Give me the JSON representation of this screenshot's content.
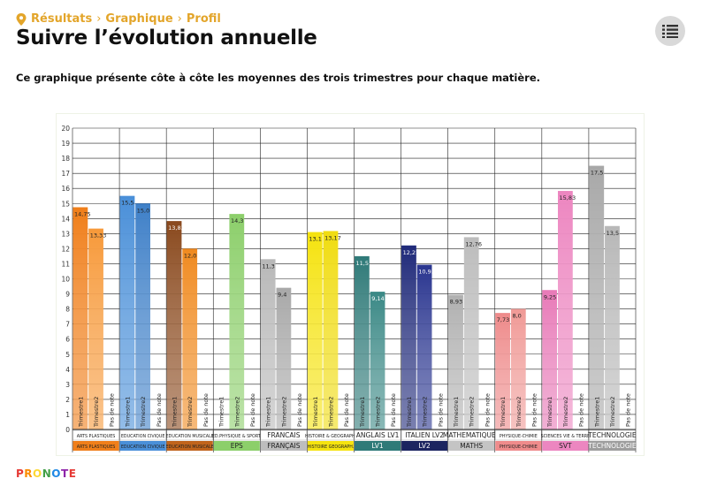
{
  "breadcrumb": {
    "items": [
      "Résultats",
      "Graphique",
      "Profil"
    ],
    "separator": "›"
  },
  "page_title": "Suivre l’évolution annuelle",
  "description": "Ce graphique présente côte à côte les moyennes des trois trimestres pour chaque matière.",
  "menu_icon": "list-menu-icon",
  "brand": {
    "text": "PRONOTE",
    "colors": [
      "#e53935",
      "#fb8c00",
      "#fdd835",
      "#43a047",
      "#1e88e5",
      "#8e24aa",
      "#e53935"
    ]
  },
  "chart_data": {
    "type": "bar",
    "title": "",
    "xlabel": "",
    "ylabel": "",
    "ylim": [
      0,
      20
    ],
    "yticks": [
      0,
      1,
      2,
      3,
      4,
      5,
      6,
      7,
      8,
      9,
      10,
      11,
      12,
      13,
      14,
      15,
      16,
      17,
      18,
      19,
      20
    ],
    "grid": true,
    "bar_labels": [
      "Trimestre1",
      "Trimestre2",
      "Pas de note"
    ],
    "subjects": [
      {
        "name": "ARTS PLASTIQUES",
        "short": "ARTS PLASTIQUES",
        "values": [
          14.75,
          13.33,
          null
        ],
        "labels": [
          "14,75",
          "13,33",
          ""
        ],
        "colors": [
          "#f07f1a",
          "#f79a3a"
        ],
        "band": "#f07f1a"
      },
      {
        "name": "EDUCATION CIVIQUE",
        "short": "EDUCATION CIVIQUE",
        "values": [
          15.5,
          15.0,
          null
        ],
        "labels": [
          "15,5",
          "15,0",
          ""
        ],
        "colors": [
          "#4a8fd8",
          "#3f80c8"
        ],
        "band": "#4a8fd8"
      },
      {
        "name": "EDUCATION MUSICALE",
        "short": "EDUCATION MUSICALE",
        "values": [
          13.83,
          12.0,
          null
        ],
        "labels": [
          "13,83",
          "12,0",
          ""
        ],
        "colors": [
          "#8a4a1e",
          "#f08a20"
        ],
        "band": "#c0641c"
      },
      {
        "name": "ED.PHYSIQUE & SPORT.",
        "short": "EPS",
        "values": [
          null,
          14.3,
          null
        ],
        "labels": [
          "",
          "14,3",
          ""
        ],
        "colors": [
          "#8ccf6a",
          "#8ccf6a"
        ],
        "band": "#8ccf6a"
      },
      {
        "name": "FRANCAIS",
        "short": "FRANÇAIS",
        "values": [
          11.3,
          9.4,
          null
        ],
        "labels": [
          "11,3",
          "9,4",
          ""
        ],
        "colors": [
          "#b8b8b8",
          "#a8a8a8"
        ],
        "band": "#bdbdbd"
      },
      {
        "name": "HISTOIRE & GEOGRAPH.",
        "short": "HISTOIRE GEOGRAPH.",
        "values": [
          13.1,
          13.17,
          null
        ],
        "labels": [
          "13,1",
          "13,17",
          ""
        ],
        "colors": [
          "#f5e30f",
          "#f0dc10"
        ],
        "band": "#f5e30f"
      },
      {
        "name": "ANGLAIS LV1",
        "short": "LV1",
        "values": [
          11.5,
          9.14,
          null
        ],
        "labels": [
          "11,5",
          "9,14",
          ""
        ],
        "colors": [
          "#2f7a78",
          "#3a8886"
        ],
        "band": "#2f7a78"
      },
      {
        "name": "ITALIEN LV2",
        "short": "LV2",
        "values": [
          12.21,
          10.93,
          null
        ],
        "labels": [
          "12,21",
          "10,93",
          ""
        ],
        "colors": [
          "#1f2a7a",
          "#2a3590"
        ],
        "band": "#1c2560"
      },
      {
        "name": "MATHEMATIQUES",
        "short": "MATHS",
        "values": [
          8.93,
          12.76,
          null
        ],
        "labels": [
          "8,93",
          "12,76",
          ""
        ],
        "colors": [
          "#b0b0b0",
          "#bcbcbc"
        ],
        "band": "#c4c4c4"
      },
      {
        "name": "PHYSIQUE-CHIMIE",
        "short": "PHYSIQUE-CHIMIE",
        "values": [
          7.73,
          8.0,
          null
        ],
        "labels": [
          "7,73",
          "8,0",
          ""
        ],
        "colors": [
          "#ee8a8a",
          "#f09a96"
        ],
        "band": "#ef8b8b"
      },
      {
        "name": "SCIENCES VIE & TERRE",
        "short": "SVT",
        "values": [
          9.25,
          15.83,
          null
        ],
        "labels": [
          "9,25",
          "15,83",
          ""
        ],
        "colors": [
          "#e87ab8",
          "#ec86c0"
        ],
        "band": "#ec86c0"
      },
      {
        "name": "TECHNOLOGIE",
        "short": "TECHNOLOGIE",
        "values": [
          17.5,
          13.5,
          null
        ],
        "labels": [
          "17,5",
          "13,5",
          ""
        ],
        "colors": [
          "#a8a8a8",
          "#b8b8b8"
        ],
        "band": "#9e9e9e"
      }
    ]
  }
}
